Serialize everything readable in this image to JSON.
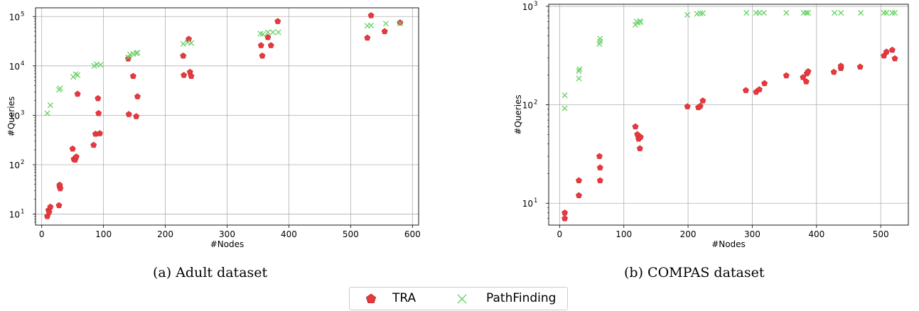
{
  "legend": {
    "series": [
      {
        "name": "TRA",
        "color": "#e8383d",
        "marker": "pentagon"
      },
      {
        "name": "PathFinding",
        "color": "#66d166",
        "marker": "x"
      }
    ],
    "placement": "bottom-center"
  },
  "captions": {
    "a": "(a) Adult dataset",
    "b": "(b) COMPAS dataset"
  },
  "chart_data": [
    {
      "type": "scatter",
      "caption": "(a) Adult dataset",
      "xlabel": "#Nodes",
      "ylabel": "#Queries",
      "xscale": "linear",
      "yscale": "log",
      "xlim": [
        -10,
        610
      ],
      "ylim": [
        6,
        150000
      ],
      "xticks": [
        0,
        100,
        200,
        300,
        400,
        500,
        600
      ],
      "xtick_labels": [
        "0",
        "100",
        "200",
        "300",
        "400",
        "500",
        "600"
      ],
      "yticks": [
        10,
        100,
        1000,
        10000,
        100000
      ],
      "ytick_labels": [
        "10^1",
        "10^2",
        "10^3",
        "10^4",
        "10^5"
      ],
      "grid": true,
      "series": [
        {
          "name": "TRA",
          "points": [
            [
              9,
              9
            ],
            [
              11,
              12
            ],
            [
              12,
              11
            ],
            [
              14,
              14
            ],
            [
              28,
              15
            ],
            [
              29,
              36
            ],
            [
              30,
              33
            ],
            [
              29,
              39
            ],
            [
              50,
              210
            ],
            [
              52,
              130
            ],
            [
              54,
              125
            ],
            [
              56,
              145
            ],
            [
              58,
              2700
            ],
            [
              84,
              250
            ],
            [
              87,
              420
            ],
            [
              91,
              2200
            ],
            [
              92,
              1100
            ],
            [
              94,
              430
            ],
            [
              140,
              14000
            ],
            [
              141,
              1050
            ],
            [
              148,
              6200
            ],
            [
              153,
              950
            ],
            [
              155,
              2400
            ],
            [
              229,
              16000
            ],
            [
              230,
              6500
            ],
            [
              238,
              35000
            ],
            [
              240,
              7500
            ],
            [
              242,
              6200
            ],
            [
              355,
              26000
            ],
            [
              357,
              16000
            ],
            [
              366,
              38000
            ],
            [
              371,
              26000
            ],
            [
              382,
              80000
            ],
            [
              527,
              37000
            ],
            [
              533,
              105000
            ],
            [
              555,
              50000
            ],
            [
              580,
              75000
            ]
          ]
        },
        {
          "name": "PathFinding",
          "points": [
            [
              9,
              1100
            ],
            [
              14,
              1600
            ],
            [
              28,
              3300
            ],
            [
              30,
              3500
            ],
            [
              51,
              6000
            ],
            [
              55,
              6800
            ],
            [
              58,
              6500
            ],
            [
              85,
              10000
            ],
            [
              89,
              10800
            ],
            [
              95,
              10500
            ],
            [
              140,
              15000
            ],
            [
              143,
              17000
            ],
            [
              148,
              17500
            ],
            [
              153,
              18000
            ],
            [
              155,
              18500
            ],
            [
              229,
              28000
            ],
            [
              236,
              30000
            ],
            [
              242,
              29000
            ],
            [
              354,
              45000
            ],
            [
              358,
              44000
            ],
            [
              366,
              48000
            ],
            [
              374,
              48000
            ],
            [
              383,
              48000
            ],
            [
              527,
              65000
            ],
            [
              533,
              66000
            ],
            [
              557,
              72000
            ],
            [
              580,
              73000
            ]
          ]
        }
      ]
    },
    {
      "type": "scatter",
      "caption": "(b) COMPAS dataset",
      "xlabel": "#Nodes",
      "ylabel": "#Queries",
      "xscale": "linear",
      "yscale": "log",
      "xlim": [
        -17,
        543
      ],
      "ylim": [
        6,
        1050
      ],
      "xticks": [
        0,
        100,
        200,
        300,
        400,
        500
      ],
      "xtick_labels": [
        "0",
        "100",
        "200",
        "300",
        "400",
        "500"
      ],
      "yticks": [
        10,
        100,
        1000
      ],
      "ytick_labels": [
        "10^1",
        "10^2",
        "10^3"
      ],
      "grid": true,
      "series": [
        {
          "name": "TRA",
          "points": [
            [
              8,
              7
            ],
            [
              8,
              8
            ],
            [
              30,
              12
            ],
            [
              30,
              17
            ],
            [
              62,
              30
            ],
            [
              63,
              23
            ],
            [
              63,
              17
            ],
            [
              118,
              60
            ],
            [
              121,
              50
            ],
            [
              123,
              45
            ],
            [
              125,
              36
            ],
            [
              126,
              47
            ],
            [
              199,
              96
            ],
            [
              216,
              94
            ],
            [
              219,
              97
            ],
            [
              223,
              110
            ],
            [
              290,
              140
            ],
            [
              306,
              135
            ],
            [
              311,
              143
            ],
            [
              319,
              165
            ],
            [
              353,
              198
            ],
            [
              379,
              190
            ],
            [
              384,
              172
            ],
            [
              385,
              208
            ],
            [
              387,
              218
            ],
            [
              427,
              215
            ],
            [
              438,
              235
            ],
            [
              438,
              248
            ],
            [
              468,
              243
            ],
            [
              505,
              315
            ],
            [
              509,
              345
            ],
            [
              518,
              360
            ],
            [
              522,
              295
            ]
          ]
        },
        {
          "name": "PathFinding",
          "points": [
            [
              8,
              92
            ],
            [
              8,
              125
            ],
            [
              30,
              185
            ],
            [
              30,
              220
            ],
            [
              31,
              230
            ],
            [
              62,
              415
            ],
            [
              63,
              440
            ],
            [
              63,
              470
            ],
            [
              118,
              650
            ],
            [
              120,
              700
            ],
            [
              122,
              680
            ],
            [
              125,
              710
            ],
            [
              126,
              690
            ],
            [
              199,
              820
            ],
            [
              214,
              840
            ],
            [
              219,
              850
            ],
            [
              223,
              850
            ],
            [
              291,
              860
            ],
            [
              306,
              860
            ],
            [
              311,
              860
            ],
            [
              318,
              860
            ],
            [
              353,
              860
            ],
            [
              380,
              860
            ],
            [
              384,
              860
            ],
            [
              387,
              860
            ],
            [
              428,
              860
            ],
            [
              438,
              860
            ],
            [
              469,
              860
            ],
            [
              505,
              860
            ],
            [
              509,
              860
            ],
            [
              518,
              860
            ],
            [
              522,
              860
            ]
          ]
        }
      ]
    }
  ]
}
